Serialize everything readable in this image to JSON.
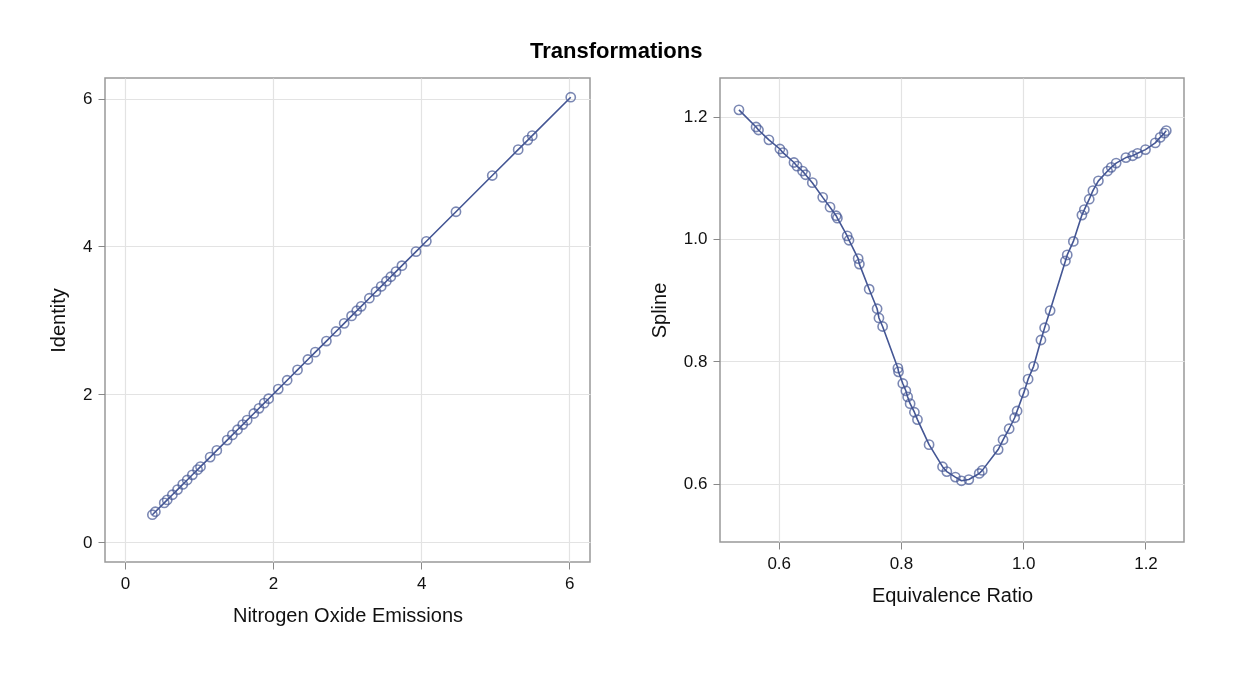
{
  "chart_data": [
    {
      "type": "line",
      "title": "Transformations",
      "xlabel": "Nitrogen Oxide Emissions",
      "ylabel": "Identity",
      "xlim": [
        -0.27,
        6.28
      ],
      "ylim": [
        -0.27,
        6.28
      ],
      "xticks": [
        0,
        2,
        4,
        6
      ],
      "yticks": [
        0,
        2,
        4,
        6
      ],
      "grid": true,
      "marker": "circle",
      "line_style": "solid",
      "x": [
        0.37,
        0.41,
        0.53,
        0.57,
        0.64,
        0.71,
        0.78,
        0.84,
        0.91,
        0.98,
        1.02,
        1.15,
        1.24,
        1.38,
        1.45,
        1.52,
        1.59,
        1.65,
        1.74,
        1.81,
        1.88,
        1.94,
        2.07,
        2.19,
        2.33,
        2.47,
        2.57,
        2.72,
        2.85,
        2.96,
        3.06,
        3.13,
        3.19,
        3.3,
        3.39,
        3.46,
        3.53,
        3.59,
        3.66,
        3.74,
        3.93,
        4.07,
        4.47,
        4.96,
        5.31,
        5.44,
        5.5,
        6.02
      ],
      "series": [
        {
          "color": "#445694",
          "values": [
            0.37,
            0.41,
            0.53,
            0.57,
            0.64,
            0.71,
            0.78,
            0.84,
            0.91,
            0.98,
            1.02,
            1.15,
            1.24,
            1.38,
            1.45,
            1.52,
            1.59,
            1.65,
            1.74,
            1.81,
            1.88,
            1.94,
            2.07,
            2.19,
            2.33,
            2.47,
            2.57,
            2.72,
            2.85,
            2.96,
            3.06,
            3.13,
            3.19,
            3.3,
            3.39,
            3.46,
            3.53,
            3.59,
            3.66,
            3.74,
            3.93,
            4.07,
            4.47,
            4.96,
            5.31,
            5.44,
            5.5,
            6.02
          ]
        }
      ]
    },
    {
      "type": "line",
      "xlabel": "Equivalence Ratio",
      "ylabel": "Spline",
      "xlim": [
        0.504,
        1.263
      ],
      "ylim": [
        0.505,
        1.263
      ],
      "xticks": [
        0.6,
        0.8,
        {
          "value": 1.0,
          "label": "1.0"
        },
        1.2
      ],
      "yticks": [
        0.6,
        0.8,
        {
          "value": 1.0,
          "label": "1.0"
        },
        1.2
      ],
      "grid": true,
      "marker": "circle",
      "line_style": "solid",
      "x": [
        0.535,
        0.563,
        0.567,
        0.584,
        0.602,
        0.607,
        0.625,
        0.63,
        0.639,
        0.644,
        0.655,
        0.672,
        0.684,
        0.694,
        0.696,
        0.712,
        0.715,
        0.73,
        0.732,
        0.748,
        0.761,
        0.764,
        0.77,
        0.795,
        0.796,
        0.803,
        0.808,
        0.811,
        0.815,
        0.822,
        0.827,
        0.846,
        0.868,
        0.875,
        0.889,
        0.899,
        0.911,
        0.928,
        0.933,
        0.959,
        0.967,
        0.977,
        0.986,
        0.99,
        1.001,
        1.008,
        1.017,
        1.029,
        1.035,
        1.044,
        1.069,
        1.072,
        1.082,
        1.096,
        1.1,
        1.108,
        1.114,
        1.123,
        1.138,
        1.144,
        1.152,
        1.168,
        1.179,
        1.187,
        1.2,
        1.216,
        1.224,
        1.231,
        1.234
      ],
      "series": [
        {
          "color": "#445694",
          "values": [
            1.211,
            1.183,
            1.178,
            1.162,
            1.147,
            1.141,
            1.125,
            1.119,
            1.111,
            1.105,
            1.092,
            1.068,
            1.052,
            1.038,
            1.034,
            1.005,
            0.998,
            0.968,
            0.959,
            0.918,
            0.886,
            0.871,
            0.857,
            0.789,
            0.783,
            0.764,
            0.752,
            0.742,
            0.731,
            0.717,
            0.705,
            0.664,
            0.628,
            0.62,
            0.611,
            0.605,
            0.607,
            0.617,
            0.622,
            0.656,
            0.672,
            0.69,
            0.708,
            0.719,
            0.749,
            0.771,
            0.792,
            0.835,
            0.855,
            0.883,
            0.964,
            0.974,
            0.996,
            1.039,
            1.048,
            1.065,
            1.079,
            1.095,
            1.111,
            1.117,
            1.124,
            1.133,
            1.136,
            1.14,
            1.146,
            1.157,
            1.166,
            1.173,
            1.177
          ]
        }
      ]
    }
  ]
}
